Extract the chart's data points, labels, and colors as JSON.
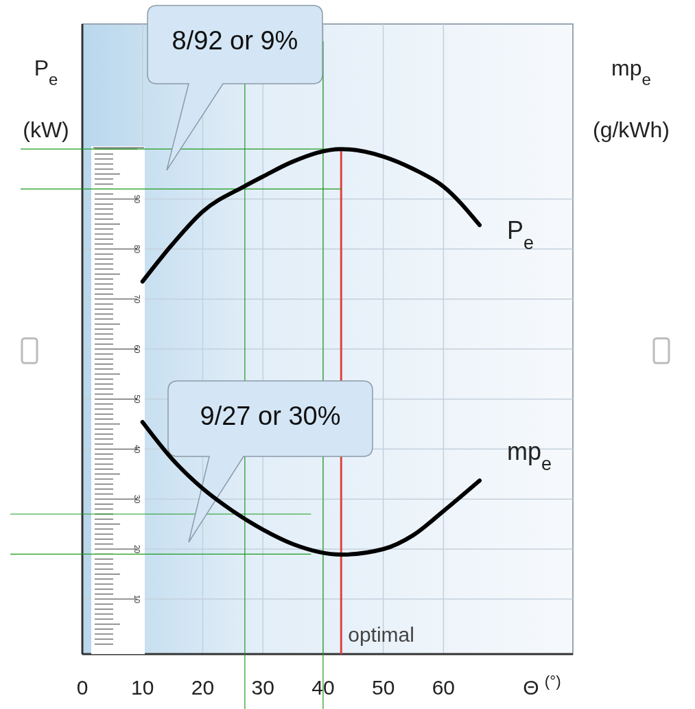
{
  "chart_data": {
    "type": "line",
    "xlabel": "Θ $^{(°)}$",
    "ylabel": "P$_{e}$\n(kW)",
    "y2label": "mp$_{e}$\n(g/kWh)",
    "xlim": [
      0,
      81.5
    ],
    "xticks": [
      0,
      10,
      20,
      30,
      40,
      50,
      60
    ],
    "ylim": [
      -1,
      125
    ],
    "yticks": [
      10,
      20,
      30,
      40,
      50,
      60,
      70,
      80,
      90
    ],
    "grid": true,
    "line_style": "solid",
    "marker": "none",
    "series": [
      {
        "name": "P$_{e}$",
        "color": "#000000",
        "x": [
          10,
          15,
          20,
          27,
          30,
          35,
          43,
          50,
          55,
          60,
          66
        ],
        "values": [
          73.5,
          81,
          87.5,
          92.6,
          94.5,
          97.5,
          100,
          98.5,
          96,
          92.5,
          84.8
        ]
      },
      {
        "name": "mp$_{e}$",
        "color": "#000000",
        "x": [
          10,
          15,
          20,
          25,
          30,
          35,
          43,
          50,
          55,
          60,
          66
        ],
        "values": [
          45.4,
          37.9,
          32.1,
          27.6,
          23.9,
          21,
          18.9,
          20,
          22.8,
          27.6,
          33.7
        ]
      }
    ],
    "ref_lines": [
      {
        "axis": "x",
        "value": 43,
        "label": "optimal",
        "color": "#e04040"
      },
      {
        "axis": "y",
        "value": 100,
        "label": null,
        "color": "#1a9a1a"
      },
      {
        "axis": "y",
        "value": 92,
        "label": null,
        "color": "#1a9a1a"
      },
      {
        "axis": "y",
        "value": 27,
        "label": null,
        "color": "#1a9a1a"
      },
      {
        "axis": "y",
        "value": 19,
        "label": null,
        "color": "#1a9a1a"
      },
      {
        "axis": "x",
        "value": 27,
        "label": null,
        "color": "#1a9a1a"
      },
      {
        "axis": "x",
        "value": 40,
        "label": null,
        "color": "#1a9a1a"
      }
    ],
    "annotations": [
      "8/92 or  9%",
      "9/27 or  30%"
    ]
  }
}
